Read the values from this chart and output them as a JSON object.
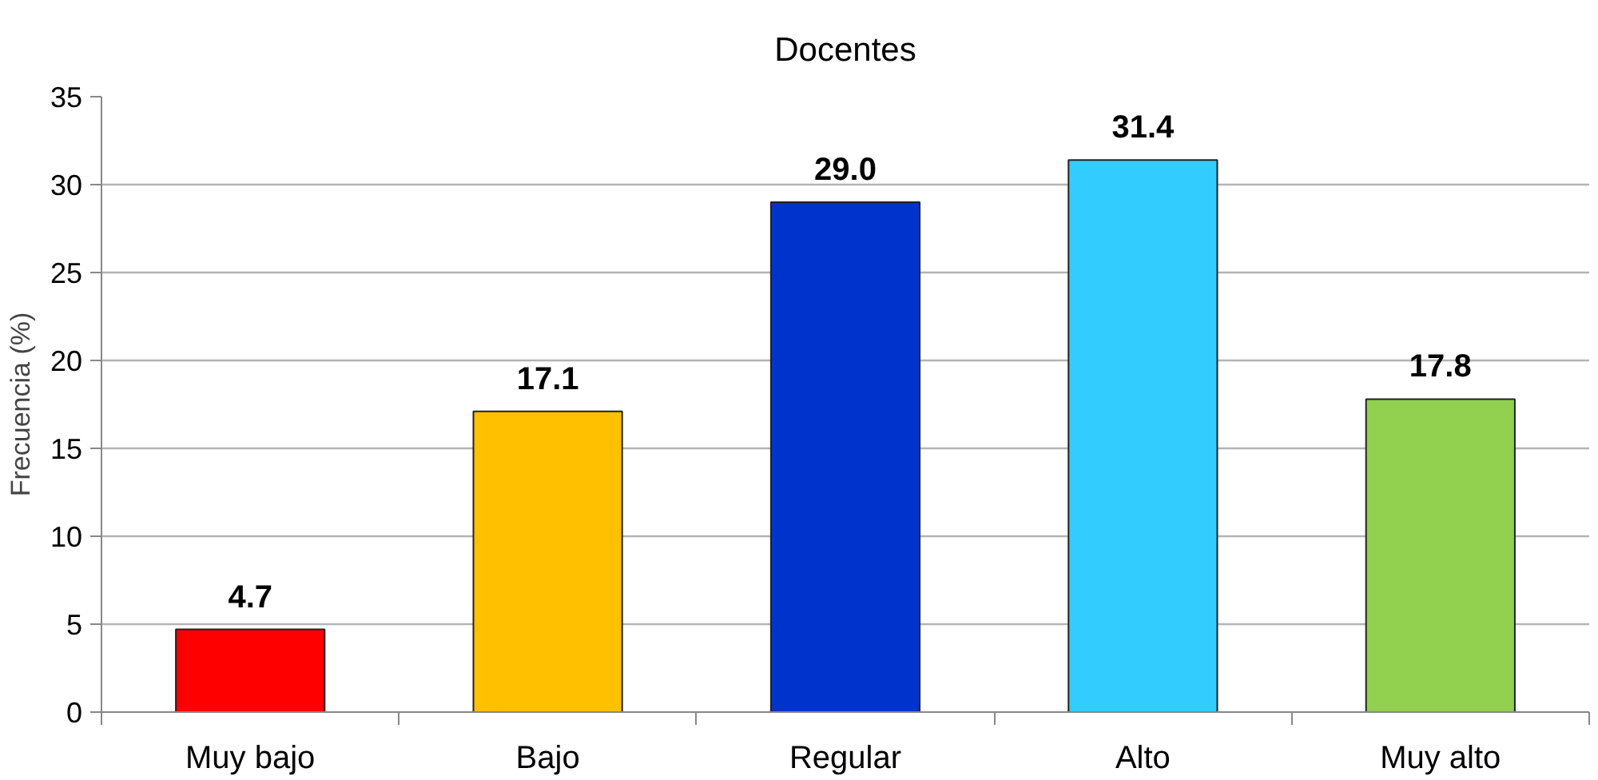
{
  "chart_data": {
    "type": "bar",
    "title": "Docentes",
    "ylabel": "Frecuencia (%)",
    "categories": [
      "Muy bajo",
      "Bajo",
      "Regular",
      "Alto",
      "Muy alto"
    ],
    "values": [
      4.7,
      17.1,
      29.0,
      31.4,
      17.8
    ],
    "colors": [
      "#ff0000",
      "#ffc000",
      "#0033cc",
      "#33ccff",
      "#92d050"
    ],
    "value_labels": [
      "4.7",
      "17.1",
      "29.0",
      "31.4",
      "17.8"
    ],
    "ylim": [
      0,
      35
    ],
    "yticks": [
      0,
      5,
      10,
      15,
      20,
      25,
      30,
      35
    ],
    "grid": "y"
  }
}
